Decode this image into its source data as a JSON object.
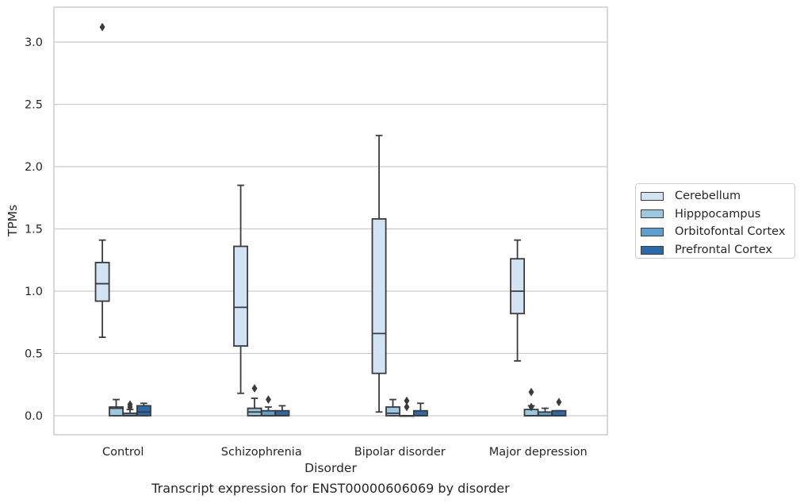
{
  "chart_data": {
    "type": "box",
    "title": "Transcript expression for ENST00000606069 by disorder",
    "xlabel": "Disorder",
    "ylabel": "TPMs",
    "ylim": [
      -0.15,
      3.27
    ],
    "yticks": [
      "0.0",
      "0.5",
      "1.0",
      "1.5",
      "2.0",
      "2.5",
      "3.0"
    ],
    "categories": [
      "Control",
      "Schizophrenia",
      "Bipolar disorder",
      "Major depression"
    ],
    "grid": "horizontal",
    "legend_position": "right",
    "series": [
      {
        "name": "Cerebellum",
        "color": "#d2e3f3",
        "boxes": [
          {
            "whisker_low": 0.63,
            "q1": 0.92,
            "median": 1.06,
            "q3": 1.23,
            "whisker_high": 1.41,
            "outliers": [
              3.12
            ]
          },
          {
            "whisker_low": 0.18,
            "q1": 0.56,
            "median": 0.87,
            "q3": 1.36,
            "whisker_high": 1.85,
            "outliers": []
          },
          {
            "whisker_low": 0.03,
            "q1": 0.34,
            "median": 0.66,
            "q3": 1.58,
            "whisker_high": 2.25,
            "outliers": []
          },
          {
            "whisker_low": 0.44,
            "q1": 0.82,
            "median": 1.0,
            "q3": 1.26,
            "whisker_high": 1.41,
            "outliers": []
          }
        ]
      },
      {
        "name": "Hipppocampus",
        "color": "#9ac8e0",
        "boxes": [
          {
            "whisker_low": 0.0,
            "q1": 0.0,
            "median": 0.06,
            "q3": 0.07,
            "whisker_high": 0.13,
            "outliers": []
          },
          {
            "whisker_low": 0.0,
            "q1": 0.0,
            "median": 0.03,
            "q3": 0.06,
            "whisker_high": 0.14,
            "outliers": [
              0.22
            ]
          },
          {
            "whisker_low": 0.0,
            "q1": 0.0,
            "median": 0.02,
            "q3": 0.07,
            "whisker_high": 0.13,
            "outliers": []
          },
          {
            "whisker_low": 0.0,
            "q1": 0.0,
            "median": 0.0,
            "q3": 0.05,
            "whisker_high": 0.08,
            "outliers": [
              0.07,
              0.19
            ]
          }
        ]
      },
      {
        "name": "Orbitofontal Cortex",
        "color": "#5a9fcf",
        "boxes": [
          {
            "whisker_low": 0.0,
            "q1": 0.0,
            "median": 0.0,
            "q3": 0.02,
            "whisker_high": 0.05,
            "outliers": [
              0.07,
              0.09
            ]
          },
          {
            "whisker_low": 0.0,
            "q1": 0.0,
            "median": 0.0,
            "q3": 0.04,
            "whisker_high": 0.07,
            "outliers": [
              0.13
            ]
          },
          {
            "whisker_low": 0.0,
            "q1": 0.0,
            "median": 0.0,
            "q3": 0.0,
            "whisker_high": 0.0,
            "outliers": [
              0.07,
              0.12
            ]
          },
          {
            "whisker_low": 0.0,
            "q1": 0.0,
            "median": 0.0,
            "q3": 0.03,
            "whisker_high": 0.06,
            "outliers": []
          }
        ]
      },
      {
        "name": "Prefrontal Cortex",
        "color": "#2a6aac",
        "boxes": [
          {
            "whisker_low": 0.0,
            "q1": 0.0,
            "median": 0.03,
            "q3": 0.08,
            "whisker_high": 0.1,
            "outliers": []
          },
          {
            "whisker_low": 0.0,
            "q1": 0.0,
            "median": 0.0,
            "q3": 0.04,
            "whisker_high": 0.08,
            "outliers": []
          },
          {
            "whisker_low": 0.0,
            "q1": 0.0,
            "median": 0.0,
            "q3": 0.04,
            "whisker_high": 0.1,
            "outliers": []
          },
          {
            "whisker_low": 0.0,
            "q1": 0.0,
            "median": 0.0,
            "q3": 0.04,
            "whisker_high": 0.04,
            "outliers": [
              0.11
            ]
          }
        ]
      }
    ]
  }
}
